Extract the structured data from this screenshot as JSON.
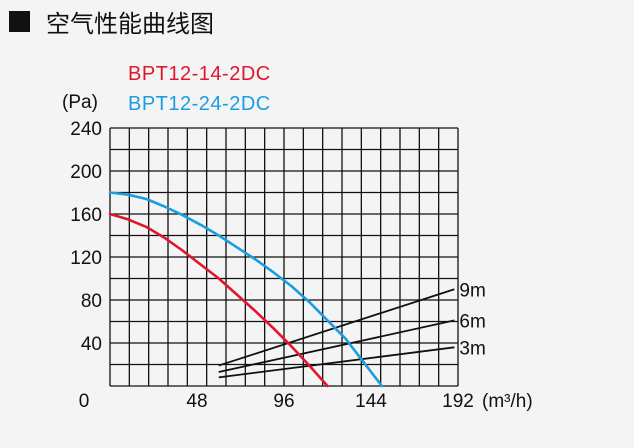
{
  "header": {
    "title": "空气性能曲线图"
  },
  "chart_data": {
    "type": "line",
    "ylabel": "(Pa)",
    "xlabel": "(m³/h)",
    "xlim": [
      0,
      192
    ],
    "ylim": [
      0,
      240
    ],
    "x_ticks": [
      "0",
      "48",
      "96",
      "144",
      "192"
    ],
    "y_ticks": [
      "40",
      "80",
      "120",
      "160",
      "200",
      "240"
    ],
    "grid": true,
    "grid_lines": {
      "vertical": 18,
      "horizontal": 12
    },
    "legend_position": "top-left",
    "series": [
      {
        "name": "BPT12-14-2DC",
        "color": "#e0162b",
        "x": [
          0,
          10,
          20,
          30,
          40,
          50,
          60,
          70,
          80,
          90,
          100,
          110,
          120
        ],
        "y": [
          160,
          155,
          148,
          138,
          126,
          113,
          100,
          85,
          70,
          54,
          37,
          19,
          0
        ]
      },
      {
        "name": "BPT12-24-2DC",
        "color": "#1a9ee0",
        "x": [
          0,
          10,
          20,
          30,
          40,
          50,
          60,
          70,
          80,
          90,
          100,
          110,
          120,
          130,
          140,
          150
        ],
        "y": [
          180,
          178,
          174,
          167,
          159,
          150,
          140,
          129,
          118,
          106,
          93,
          78,
          61,
          44,
          22,
          0
        ]
      }
    ],
    "system_curves": [
      {
        "label": "9m",
        "color": "#111111",
        "x": [
          60,
          190
        ],
        "y": [
          19,
          90
        ]
      },
      {
        "label": "6m",
        "color": "#111111",
        "x": [
          60,
          190
        ],
        "y": [
          13,
          61
        ]
      },
      {
        "label": "3m",
        "color": "#111111",
        "x": [
          60,
          190
        ],
        "y": [
          8,
          36
        ]
      }
    ]
  }
}
